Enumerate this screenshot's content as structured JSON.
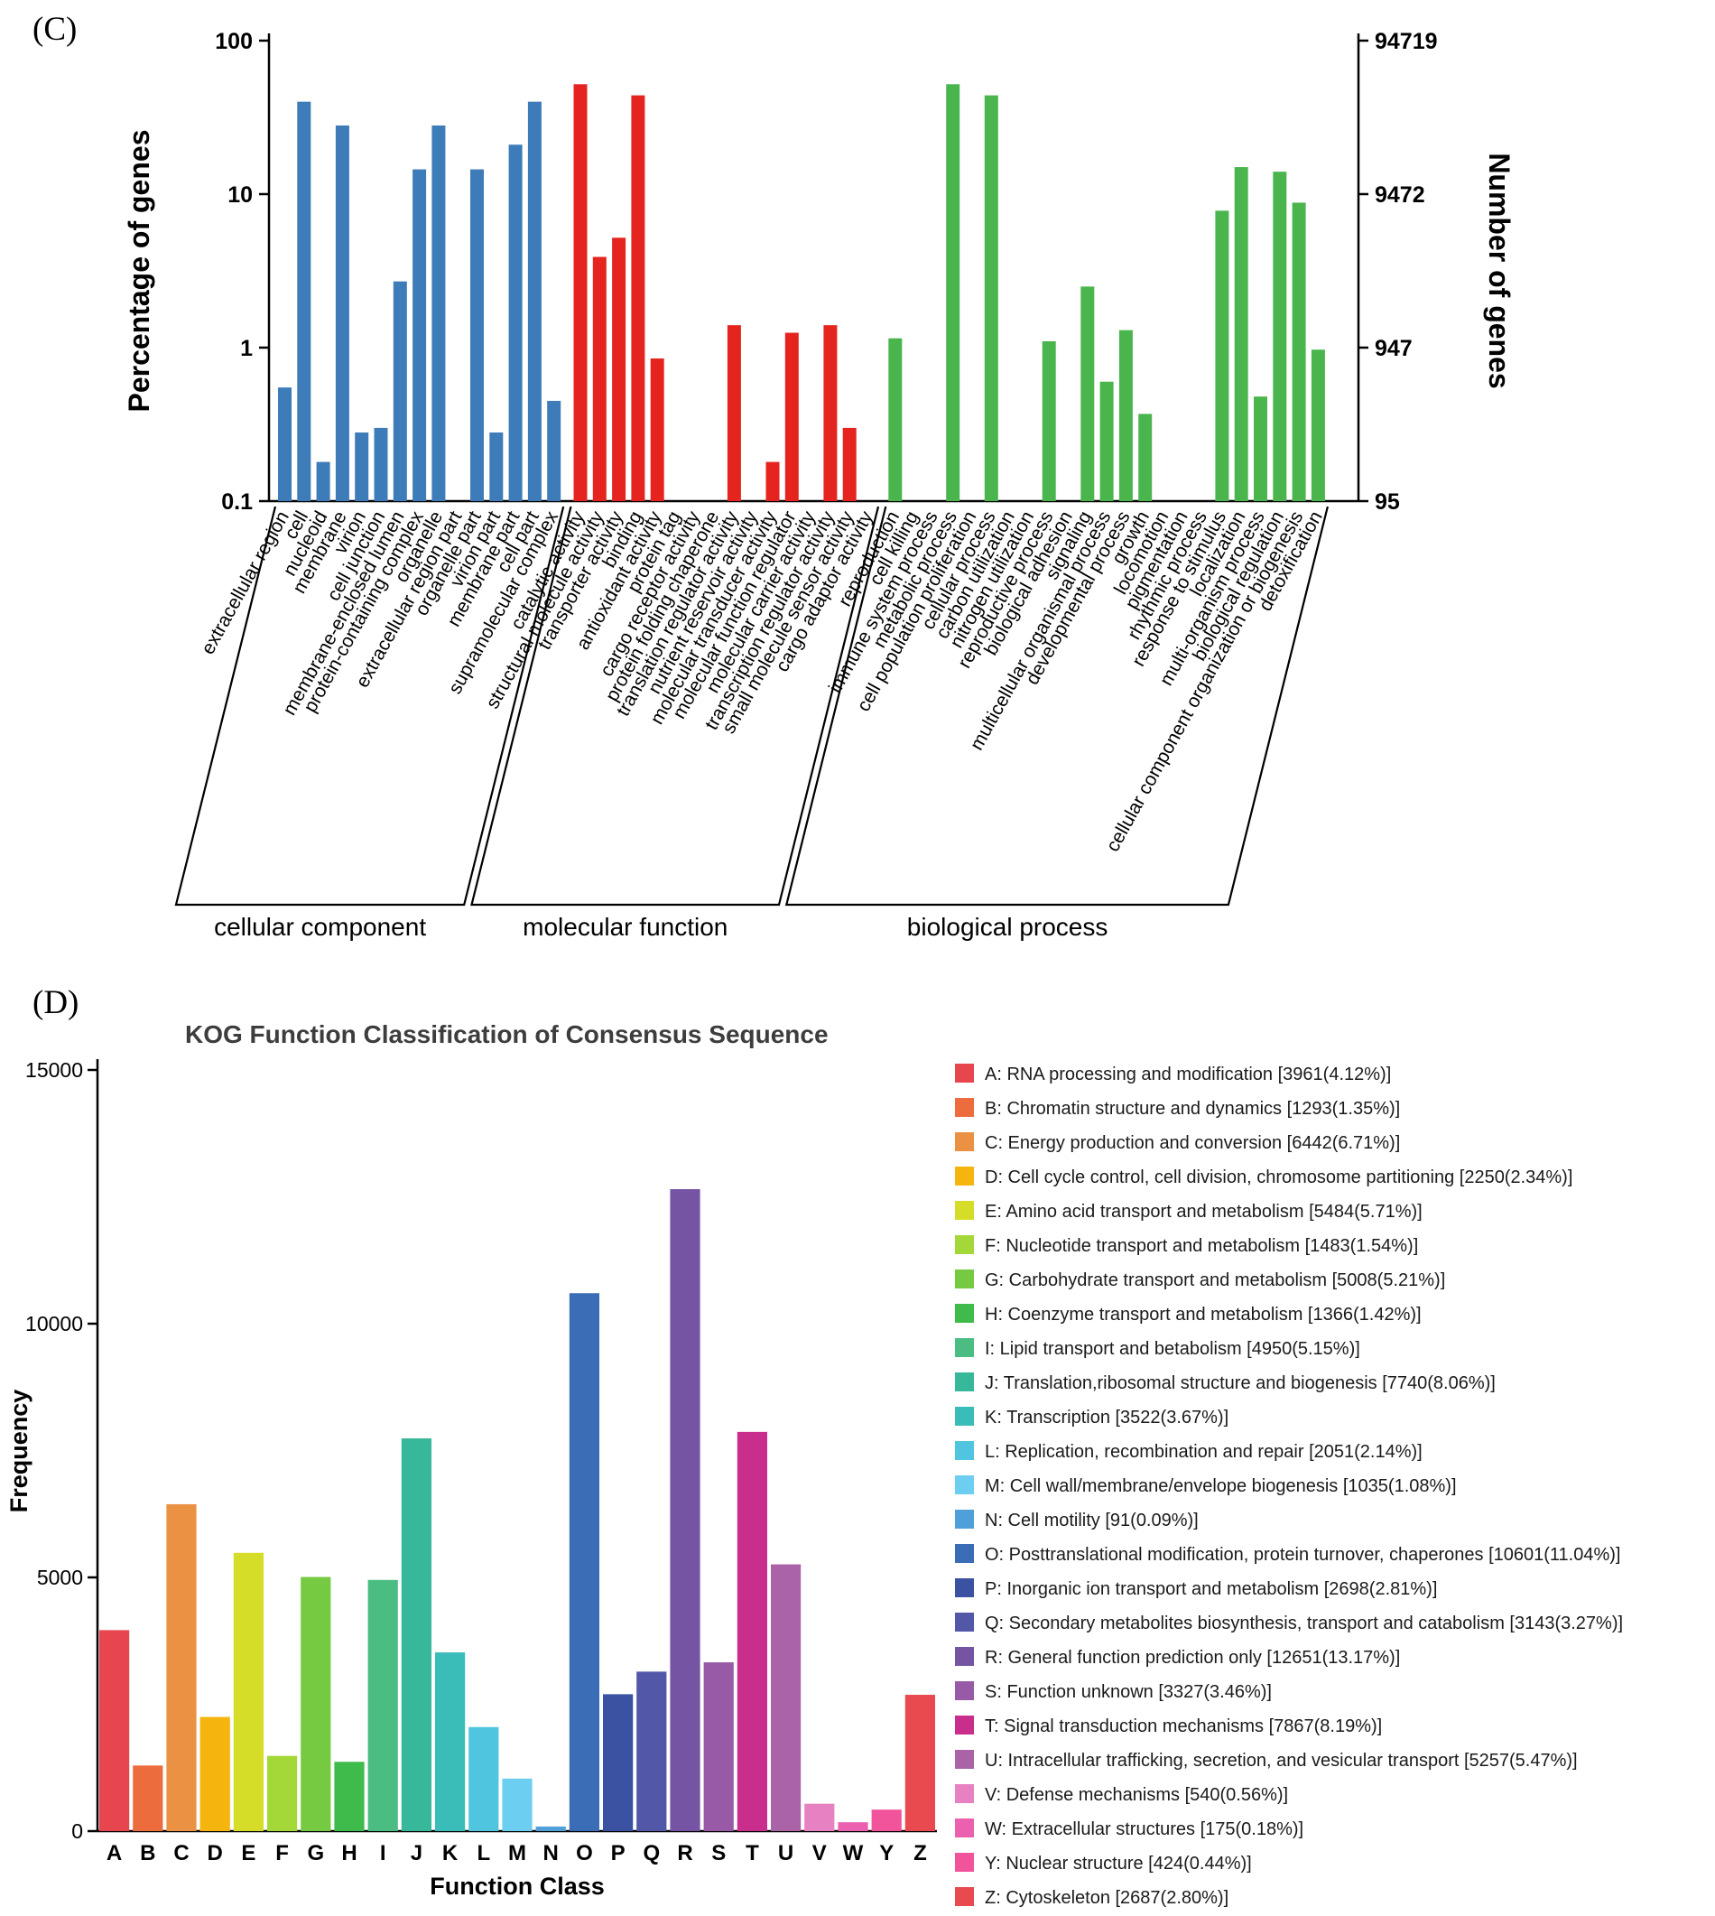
{
  "figure": {
    "panel_c_label": "(C)",
    "panel_d_label": "(D)"
  },
  "chart_data": [
    {
      "id": "go-classification",
      "type": "bar",
      "y_scale": "log",
      "ylabel_left": "Percentage of genes",
      "ylabel_right": "Number of genes",
      "ylim": [
        0.1,
        100
      ],
      "left_ticks": [
        {
          "value": 100,
          "label": "100"
        },
        {
          "value": 10,
          "label": "10"
        },
        {
          "value": 1,
          "label": "1"
        },
        {
          "value": 0.1,
          "label": "0.1"
        }
      ],
      "right_ticks": [
        {
          "value": 100,
          "label": "94719"
        },
        {
          "value": 10,
          "label": "9472"
        },
        {
          "value": 1,
          "label": "947"
        },
        {
          "value": 0.1,
          "label": "95"
        }
      ],
      "groups": [
        {
          "name": "cellular component",
          "color": "#3d7cb8",
          "categories": [
            "extracellular region",
            "cell",
            "nucleoid",
            "membrane",
            "virion",
            "cell junction",
            "membrane-enclosed lumen",
            "protein-containing complex",
            "organelle",
            "extracellular region part",
            "organelle part",
            "virion part",
            "membrane part",
            "cell part",
            "supramolecular complex"
          ],
          "values": [
            0.55,
            40,
            0.18,
            28,
            0.28,
            0.3,
            2.7,
            14.5,
            28,
            null,
            14.5,
            0.28,
            21,
            40,
            0.45
          ]
        },
        {
          "name": "molecular function",
          "color": "#e6241f",
          "categories": [
            "catalytic activity",
            "structural molecule activity",
            "transporter activity",
            "binding",
            "antioxidant activity",
            "protein tag",
            "cargo receptor activity",
            "protein folding chaperone",
            "translation regulator activity",
            "nutrient reservoir activity",
            "molecular transducer activity",
            "molecular function regulator",
            "molecular carrier activity",
            "transcription regulator activity",
            "small molecule sensor activity",
            "cargo adaptor activity"
          ],
          "values": [
            52,
            3.9,
            5.2,
            44,
            0.85,
            null,
            null,
            null,
            1.4,
            null,
            0.18,
            1.25,
            null,
            1.4,
            0.3,
            null
          ]
        },
        {
          "name": "biological process",
          "color": "#4ab54c",
          "categories": [
            "reproduction",
            "cell killing",
            "immune system process",
            "metabolic process",
            "cell population proliferation",
            "cellular process",
            "carbon utilization",
            "nitrogen utilization",
            "reproductive process",
            "biological adhesion",
            "signaling",
            "multicellular organismal process",
            "developmental process",
            "growth",
            "locomotion",
            "pigmentation",
            "rhythmic process",
            "response to stimulus",
            "localization",
            "multi-organism process",
            "biological regulation",
            "cellular component organization or biogenesis",
            "detoxification"
          ],
          "values": [
            1.15,
            null,
            null,
            52,
            null,
            44,
            null,
            null,
            1.1,
            null,
            2.5,
            0.6,
            1.3,
            0.37,
            null,
            null,
            null,
            7.8,
            15,
            0.48,
            14,
            8.8,
            0.97
          ]
        }
      ]
    },
    {
      "id": "kog-classification",
      "type": "bar",
      "title": "KOG Function Classification of Consensus Sequence",
      "xlabel": "Function Class",
      "ylabel": "Frequency",
      "ylim": [
        0,
        15000
      ],
      "y_ticks": [
        0,
        5000,
        10000,
        15000
      ],
      "classes": [
        {
          "letter": "A",
          "description": "RNA processing and modification",
          "count": 3961,
          "percent": "4.12%",
          "color": "#e8464f"
        },
        {
          "letter": "B",
          "description": "Chromatin structure and dynamics",
          "count": 1293,
          "percent": "1.35%",
          "color": "#ec6c3d"
        },
        {
          "letter": "C",
          "description": "Energy production and conversion",
          "count": 6442,
          "percent": "6.71%",
          "color": "#eb9144"
        },
        {
          "letter": "D",
          "description": "Cell cycle control, cell division, chromosome partitioning",
          "count": 2250,
          "percent": "2.34%",
          "color": "#f6b40e"
        },
        {
          "letter": "E",
          "description": "Amino acid transport and metabolism",
          "count": 5484,
          "percent": "5.71%",
          "color": "#d5dd28"
        },
        {
          "letter": "F",
          "description": "Nucleotide transport and metabolism",
          "count": 1483,
          "percent": "1.54%",
          "color": "#a4d838"
        },
        {
          "letter": "G",
          "description": "Carbohydrate transport and metabolism",
          "count": 5008,
          "percent": "5.21%",
          "color": "#76ca41"
        },
        {
          "letter": "H",
          "description": "Coenzyme transport and metabolism",
          "count": 1366,
          "percent": "1.42%",
          "color": "#3fbb4b"
        },
        {
          "letter": "I",
          "description": "Lipid transport and betabolism",
          "count": 4950,
          "percent": "5.15%",
          "color": "#4cbd82"
        },
        {
          "letter": "J",
          "description": "Translation,ribosomal structure and biogenesis",
          "count": 7740,
          "percent": "8.06%",
          "color": "#38b89a"
        },
        {
          "letter": "K",
          "description": "Transcription",
          "count": 3522,
          "percent": "3.67%",
          "color": "#3abdb9"
        },
        {
          "letter": "L",
          "description": "Replication, recombination and repair",
          "count": 2051,
          "percent": "2.14%",
          "color": "#50c5df"
        },
        {
          "letter": "M",
          "description": "Cell wall/membrane/envelope biogenesis",
          "count": 1035,
          "percent": "1.08%",
          "color": "#6ccef1"
        },
        {
          "letter": "N",
          "description": "Cell motility",
          "count": 91,
          "percent": "0.09%",
          "color": "#4f9fd9"
        },
        {
          "letter": "O",
          "description": "Posttranslational modification, protein turnover, chaperones",
          "count": 10601,
          "percent": "11.04%",
          "color": "#3a6db5"
        },
        {
          "letter": "P",
          "description": "Inorganic ion transport and metabolism",
          "count": 2698,
          "percent": "2.81%",
          "color": "#3b51a2"
        },
        {
          "letter": "Q",
          "description": "Secondary metabolites biosynthesis, transport and catabolism",
          "count": 3143,
          "percent": "3.27%",
          "color": "#5257a8"
        },
        {
          "letter": "R",
          "description": "General function prediction only",
          "count": 12651,
          "percent": "13.17%",
          "color": "#7654a4"
        },
        {
          "letter": "S",
          "description": "Function unknown",
          "count": 3327,
          "percent": "3.46%",
          "color": "#985aa7"
        },
        {
          "letter": "T",
          "description": "Signal transduction mechanisms",
          "count": 7867,
          "percent": "8.19%",
          "color": "#c92e8d"
        },
        {
          "letter": "U",
          "description": "Intracellular trafficking, secretion, and vesicular transport",
          "count": 5257,
          "percent": "5.47%",
          "color": "#ab63a7"
        },
        {
          "letter": "V",
          "description": "Defense mechanisms",
          "count": 540,
          "percent": "0.56%",
          "color": "#e781c2"
        },
        {
          "letter": "W",
          "description": "Extracellular structures",
          "count": 175,
          "percent": "0.18%",
          "color": "#eb61af"
        },
        {
          "letter": "Y",
          "description": "Nuclear structure",
          "count": 424,
          "percent": "0.44%",
          "color": "#f2549b"
        },
        {
          "letter": "Z",
          "description": "Cytoskeleton",
          "count": 2687,
          "percent": "2.80%",
          "color": "#e84a50"
        }
      ]
    }
  ]
}
